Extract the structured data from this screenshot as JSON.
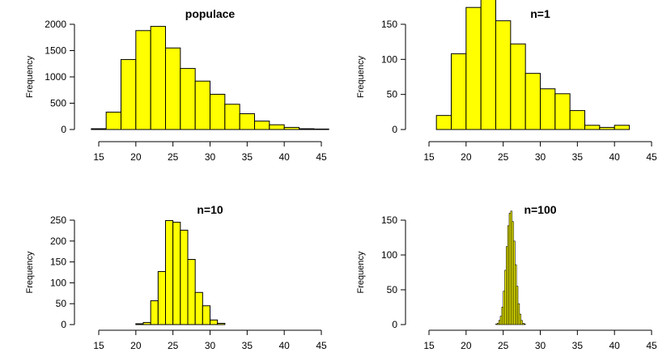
{
  "bar_color": "#ffff00",
  "bar_border": "#000000",
  "chart_data": [
    {
      "type": "bar",
      "title": "populace",
      "ylabel": "Frequency",
      "xlabel": "",
      "xlim": [
        15,
        45
      ],
      "ylim": [
        0,
        2000
      ],
      "xticks": [
        "15",
        "20",
        "25",
        "30",
        "35",
        "40",
        "45"
      ],
      "yticks": [
        "0",
        "500",
        "1000",
        "1500",
        "2000"
      ],
      "bin_width": 2,
      "bin_start": 14,
      "values": [
        15,
        330,
        1330,
        1880,
        1960,
        1550,
        1160,
        920,
        670,
        480,
        300,
        160,
        90,
        40,
        15,
        5
      ]
    },
    {
      "type": "bar",
      "title": "n=1",
      "ylabel": "Frequency",
      "xlabel": "",
      "xlim": [
        15,
        45
      ],
      "ylim": [
        0,
        150
      ],
      "xticks": [
        "15",
        "20",
        "25",
        "30",
        "35",
        "40",
        "45"
      ],
      "yticks": [
        "0",
        "50",
        "100",
        "150"
      ],
      "bin_width": 2,
      "bin_start": 16,
      "values": [
        20,
        108,
        174,
        190,
        155,
        122,
        80,
        58,
        51,
        27,
        6,
        3,
        6
      ]
    },
    {
      "type": "bar",
      "title": "n=10",
      "ylabel": "Frequency",
      "xlabel": "",
      "xlim": [
        15,
        45
      ],
      "ylim": [
        0,
        250
      ],
      "xticks": [
        "15",
        "20",
        "25",
        "30",
        "35",
        "40",
        "45"
      ],
      "yticks": [
        "0",
        "50",
        "100",
        "150",
        "200",
        "250"
      ],
      "bin_width": 1,
      "bin_start": 20,
      "values": [
        2,
        5,
        57,
        127,
        249,
        245,
        226,
        156,
        77,
        45,
        11,
        3
      ]
    },
    {
      "type": "bar",
      "title": "n=100",
      "ylabel": "Frequency",
      "xlabel": "",
      "xlim": [
        15,
        45
      ],
      "ylim": [
        0,
        150
      ],
      "xticks": [
        "15",
        "20",
        "25",
        "30",
        "35",
        "40",
        "45"
      ],
      "yticks": [
        "0",
        "50",
        "100",
        "150"
      ],
      "bin_width": 0.2,
      "bin_start": 24.0,
      "values": [
        1,
        2,
        6,
        12,
        25,
        48,
        78,
        112,
        142,
        160,
        163,
        148,
        120,
        86,
        55,
        30,
        15,
        6,
        2,
        1
      ]
    }
  ]
}
